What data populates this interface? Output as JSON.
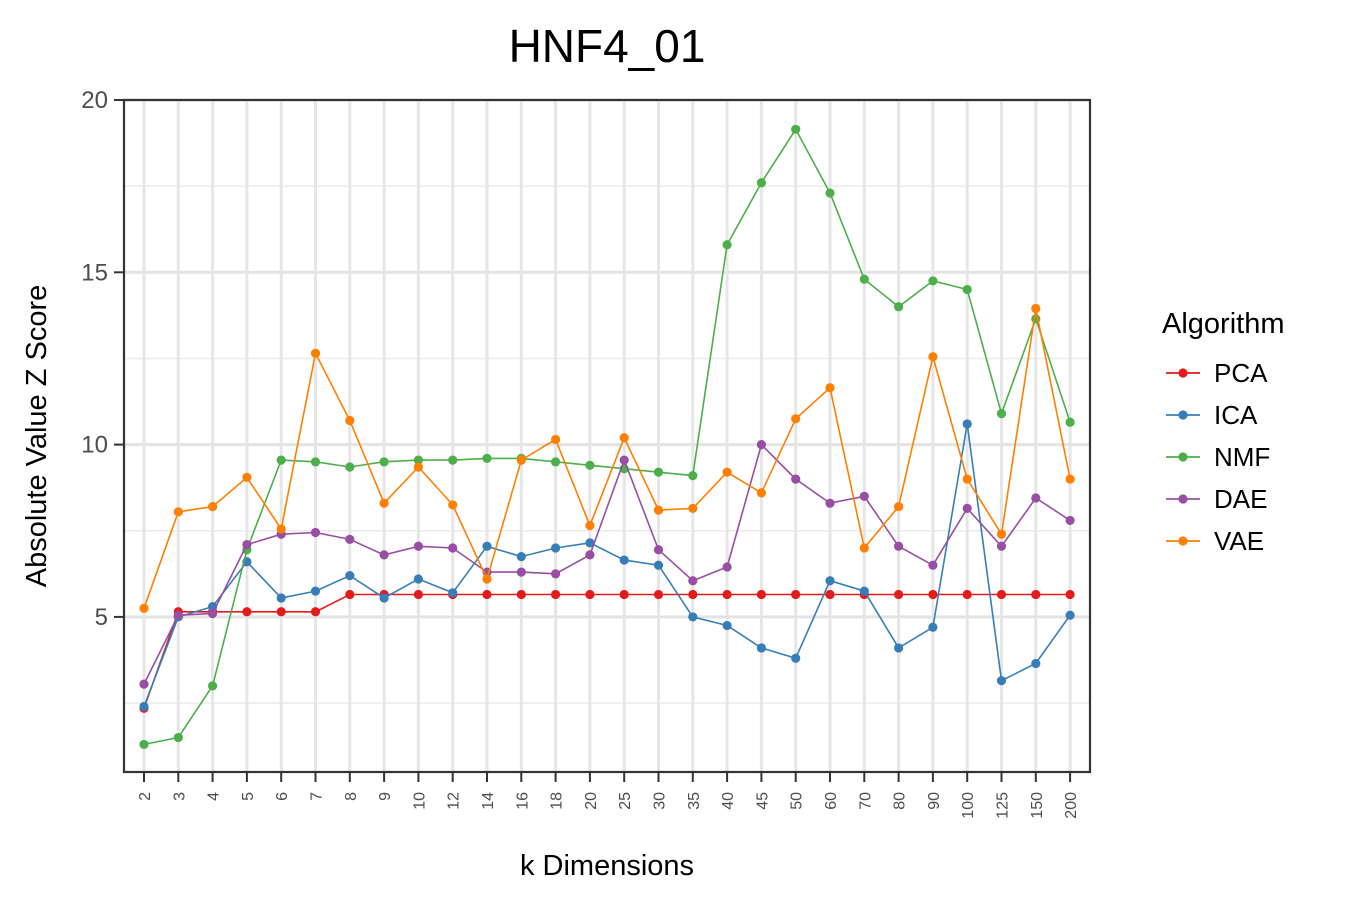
{
  "chart_data": {
    "type": "line",
    "title": "HNF4_01",
    "xlabel": "k Dimensions",
    "ylabel": "Absolute Value Z Score",
    "categories": [
      "2",
      "3",
      "4",
      "5",
      "6",
      "7",
      "8",
      "9",
      "10",
      "12",
      "14",
      "16",
      "18",
      "20",
      "25",
      "30",
      "35",
      "40",
      "45",
      "50",
      "60",
      "70",
      "80",
      "90",
      "100",
      "125",
      "150",
      "200"
    ],
    "ylim": [
      0.5,
      20
    ],
    "yticks": [
      5,
      10,
      15,
      20
    ],
    "grid": true,
    "legend_title": "Algorithm",
    "legend_position": "right",
    "series": [
      {
        "name": "PCA",
        "color": "#e41a1c",
        "values": [
          2.35,
          5.15,
          5.15,
          5.15,
          5.15,
          5.15,
          5.65,
          5.65,
          5.65,
          5.65,
          5.65,
          5.65,
          5.65,
          5.65,
          5.65,
          5.65,
          5.65,
          5.65,
          5.65,
          5.65,
          5.65,
          5.65,
          5.65,
          5.65,
          5.65,
          5.65,
          5.65,
          5.65
        ]
      },
      {
        "name": "ICA",
        "color": "#377eb8",
        "values": [
          2.4,
          5.0,
          5.3,
          6.6,
          5.55,
          5.75,
          6.2,
          5.55,
          6.1,
          5.7,
          7.05,
          6.75,
          7.0,
          7.15,
          6.65,
          6.5,
          5.0,
          4.75,
          4.1,
          3.8,
          6.05,
          5.75,
          4.1,
          4.7,
          10.6,
          3.15,
          3.65,
          5.05
        ]
      },
      {
        "name": "NMF",
        "color": "#4daf4a",
        "values": [
          1.3,
          1.5,
          3.0,
          6.95,
          9.55,
          9.5,
          9.35,
          9.5,
          9.55,
          9.55,
          9.6,
          9.6,
          9.5,
          9.4,
          9.3,
          9.2,
          9.1,
          15.8,
          17.6,
          19.15,
          17.3,
          14.8,
          14.0,
          14.75,
          14.5,
          10.9,
          13.65,
          10.65
        ]
      },
      {
        "name": "DAE",
        "color": "#984ea3",
        "values": [
          3.05,
          5.05,
          5.1,
          7.1,
          7.4,
          7.45,
          7.25,
          6.8,
          7.05,
          7.0,
          6.3,
          6.3,
          6.25,
          6.8,
          9.55,
          6.95,
          6.05,
          6.45,
          10.0,
          9.0,
          8.3,
          8.5,
          7.05,
          6.5,
          8.15,
          7.05,
          8.45,
          7.8
        ]
      },
      {
        "name": "VAE",
        "color": "#ff7f00",
        "values": [
          5.25,
          8.05,
          8.2,
          9.05,
          7.55,
          12.65,
          10.7,
          8.3,
          9.35,
          8.25,
          6.1,
          9.55,
          10.15,
          7.65,
          10.2,
          8.1,
          8.15,
          9.2,
          8.6,
          10.75,
          11.65,
          7.0,
          8.2,
          12.55,
          9.0,
          7.4,
          13.95,
          9.0
        ]
      }
    ]
  }
}
